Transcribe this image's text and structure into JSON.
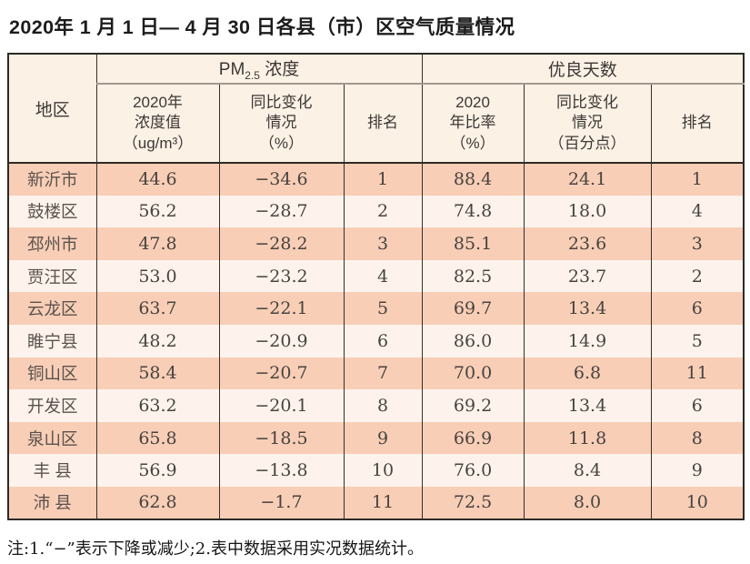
{
  "page": {
    "title": "2020年 1 月 1 日— 4 月 30 日各县（市）区空气质量情况",
    "footnote": "注:1.“−”表示下降或减少;2.表中数据采用实况数据统计。"
  },
  "colors": {
    "row_salmon": "#f8ceb6",
    "row_cream": "#fdf3ec",
    "header_bg": "#fcf1e5",
    "border_dark": "#2e2a26",
    "group_underline_gray": "#a3978f",
    "text_dark": "#474340"
  },
  "table": {
    "groups": {
      "region": "地区",
      "pm25": {
        "prefix": "PM",
        "sub": "2.5",
        "suffix": " 浓度"
      },
      "good_days": "优良天数"
    },
    "sub_headers": {
      "pm_value": "2020年\n浓度值\n（ug/m³）",
      "pm_change": "同比变化\n情况\n（%）",
      "pm_rank": "排名",
      "gd_rate": "2020\n年比率\n（%）",
      "gd_change": "同比变化\n情况\n（百分点）",
      "gd_rank": "排名"
    },
    "rows": [
      {
        "region": "新沂市",
        "pm_value": "44.6",
        "pm_change": "−34.6",
        "pm_rank": "1",
        "gd_rate": "88.4",
        "gd_change": "24.1",
        "gd_rank": "1"
      },
      {
        "region": "鼓楼区",
        "pm_value": "56.2",
        "pm_change": "−28.7",
        "pm_rank": "2",
        "gd_rate": "74.8",
        "gd_change": "18.0",
        "gd_rank": "4"
      },
      {
        "region": "邳州市",
        "pm_value": "47.8",
        "pm_change": "−28.2",
        "pm_rank": "3",
        "gd_rate": "85.1",
        "gd_change": "23.6",
        "gd_rank": "3"
      },
      {
        "region": "贾汪区",
        "pm_value": "53.0",
        "pm_change": "−23.2",
        "pm_rank": "4",
        "gd_rate": "82.5",
        "gd_change": "23.7",
        "gd_rank": "2"
      },
      {
        "region": "云龙区",
        "pm_value": "63.7",
        "pm_change": "−22.1",
        "pm_rank": "5",
        "gd_rate": "69.7",
        "gd_change": "13.4",
        "gd_rank": "6"
      },
      {
        "region": "睢宁县",
        "pm_value": "48.2",
        "pm_change": "−20.9",
        "pm_rank": "6",
        "gd_rate": "86.0",
        "gd_change": "14.9",
        "gd_rank": "5"
      },
      {
        "region": "铜山区",
        "pm_value": "58.4",
        "pm_change": "−20.7",
        "pm_rank": "7",
        "gd_rate": "70.0",
        "gd_change": "6.8",
        "gd_rank": "11"
      },
      {
        "region": "开发区",
        "pm_value": "63.2",
        "pm_change": "−20.1",
        "pm_rank": "8",
        "gd_rate": "69.2",
        "gd_change": "13.4",
        "gd_rank": "6"
      },
      {
        "region": "泉山区",
        "pm_value": "65.8",
        "pm_change": "−18.5",
        "pm_rank": "9",
        "gd_rate": "66.9",
        "gd_change": "11.8",
        "gd_rank": "8"
      },
      {
        "region": "丰 县",
        "pm_value": "56.9",
        "pm_change": "−13.8",
        "pm_rank": "10",
        "gd_rate": "76.0",
        "gd_change": "8.4",
        "gd_rank": "9"
      },
      {
        "region": "沛 县",
        "pm_value": "62.8",
        "pm_change": "−1.7",
        "pm_rank": "11",
        "gd_rate": "72.5",
        "gd_change": "8.0",
        "gd_rank": "10"
      }
    ]
  }
}
